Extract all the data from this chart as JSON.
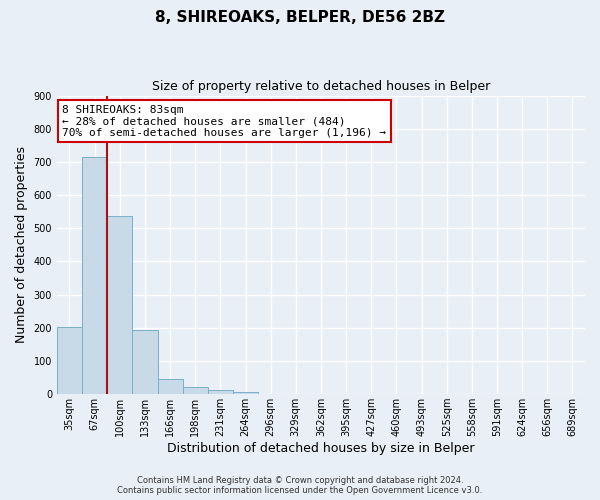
{
  "title": "8, SHIREOAKS, BELPER, DE56 2BZ",
  "subtitle": "Size of property relative to detached houses in Belper",
  "xlabel": "Distribution of detached houses by size in Belper",
  "ylabel": "Number of detached properties",
  "bar_labels": [
    "35sqm",
    "67sqm",
    "100sqm",
    "133sqm",
    "166sqm",
    "198sqm",
    "231sqm",
    "264sqm",
    "296sqm",
    "329sqm",
    "362sqm",
    "395sqm",
    "427sqm",
    "460sqm",
    "493sqm",
    "525sqm",
    "558sqm",
    "591sqm",
    "624sqm",
    "656sqm",
    "689sqm"
  ],
  "bar_values": [
    202,
    715,
    537,
    193,
    46,
    22,
    13,
    8,
    0,
    0,
    0,
    0,
    0,
    0,
    0,
    0,
    0,
    0,
    0,
    0,
    0
  ],
  "bar_color": "#c8d9e8",
  "bar_edge_color": "#7aaec8",
  "vline_x_index": 1,
  "vline_color": "#aa1111",
  "ylim": [
    0,
    900
  ],
  "yticks": [
    0,
    100,
    200,
    300,
    400,
    500,
    600,
    700,
    800,
    900
  ],
  "annotation_box_text": "8 SHIREOAKS: 83sqm\n← 28% of detached houses are smaller (484)\n70% of semi-detached houses are larger (1,196) →",
  "annotation_box_color": "#ffffff",
  "annotation_box_edge_color": "#cc0000",
  "footer_line1": "Contains HM Land Registry data © Crown copyright and database right 2024.",
  "footer_line2": "Contains public sector information licensed under the Open Government Licence v3.0.",
  "bg_color": "#e8eff6",
  "plot_bg_color": "#e8eff6",
  "grid_color": "#ffffff",
  "title_fontsize": 11,
  "subtitle_fontsize": 9,
  "axis_label_fontsize": 9,
  "tick_fontsize": 7
}
